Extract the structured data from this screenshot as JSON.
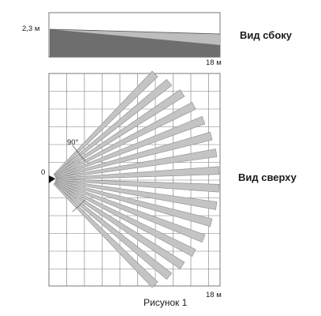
{
  "side_view": {
    "title": "Вид сбоку",
    "height_label": "2,3 м",
    "distance_label": "18 м"
  },
  "top_view": {
    "title": "Вид сверху",
    "origin_label": "0",
    "angle_label": "90°",
    "distance_label": "18 м",
    "beam_count": 16,
    "coverage_angle_deg": 90
  },
  "caption": "Рисунок 1",
  "colors": {
    "grid": "#7a7a7a",
    "beam_fill": "#c4c4c4",
    "beam_stroke": "#8a8a8a",
    "side_dark": "#6e6e6e",
    "side_light": "#bdbdbd"
  }
}
